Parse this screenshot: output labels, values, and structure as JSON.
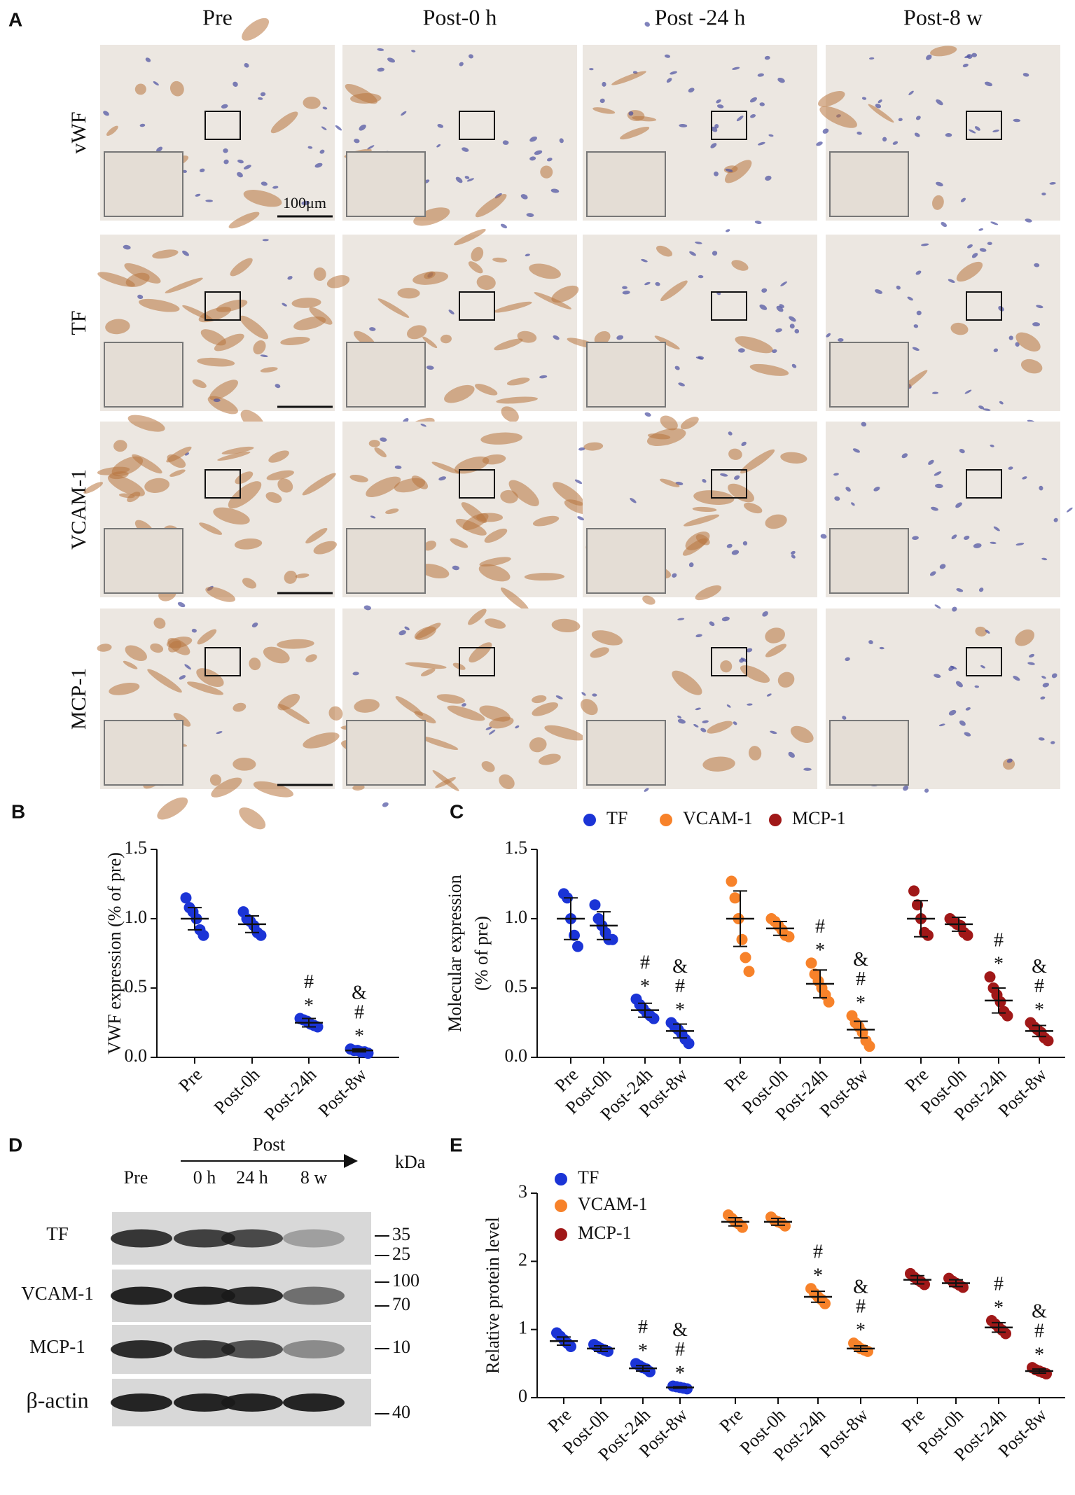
{
  "panel_a": {
    "label": "A",
    "columns": [
      "Pre",
      "Post-0 h",
      "Post -24 h",
      "Post-8 w"
    ],
    "rows": [
      "vWF",
      "TF",
      "VCAM-1",
      "MCP-1"
    ],
    "scale_bar": "100μm"
  },
  "panel_d": {
    "label": "D",
    "header": "Post",
    "unit": "kDa",
    "lanes": [
      "Pre",
      "0 h",
      "24 h",
      "8 w"
    ],
    "rows": [
      {
        "name": "TF",
        "markers": [
          35,
          25
        ]
      },
      {
        "name": "VCAM-1",
        "markers": [
          100,
          70
        ]
      },
      {
        "name": "MCP-1",
        "markers": [
          10
        ]
      },
      {
        "name": "β-actin",
        "markers": [
          40
        ]
      }
    ]
  },
  "chart_data": [
    {
      "type": "dot",
      "label": "B",
      "y_label": [
        "VWF expression (% of pre)"
      ],
      "categories": [
        "Pre",
        "Post-0h",
        "Post-24h",
        "Post-8w"
      ],
      "ylim": [
        0,
        1.5
      ],
      "yticks": [
        {
          "value": 0,
          "label": "0.0"
        },
        0.5,
        {
          "value": 1,
          "label": "1.0"
        },
        1.5
      ],
      "series": [
        {
          "color": "#1b34d6",
          "points": [
            [
              1.15,
              1.08,
              1.05,
              1.0,
              0.92,
              0.88
            ],
            [
              1.05,
              1.0,
              0.98,
              0.95,
              0.9,
              0.88
            ],
            [
              0.28,
              0.27,
              0.26,
              0.24,
              0.23,
              0.22
            ],
            [
              0.06,
              0.05,
              0.05,
              0.04,
              0.04,
              0.03
            ]
          ],
          "mean": [
            1.0,
            0.96,
            0.25,
            0.05
          ],
          "sd": [
            0.08,
            0.06,
            0.03,
            0.01
          ],
          "significance": [
            null,
            null,
            [
              "#",
              "*"
            ],
            [
              "&",
              "#",
              "*"
            ]
          ]
        }
      ]
    },
    {
      "type": "dot",
      "label": "C",
      "y_label": [
        "Molecular expression",
        "(% of pre)"
      ],
      "legend": "top",
      "categories": [
        "Pre",
        "Post-0h",
        "Post-24h",
        "Post-8w"
      ],
      "ylim": [
        0,
        1.5
      ],
      "yticks": [
        {
          "value": 0,
          "label": "0.0"
        },
        0.5,
        {
          "value": 1,
          "label": "1.0"
        },
        1.5
      ],
      "series": [
        {
          "name": "TF",
          "color": "#1b34d6",
          "points": [
            [
              1.18,
              1.15,
              1.0,
              0.88,
              0.8
            ],
            [
              1.1,
              1.0,
              0.95,
              0.9,
              0.85,
              0.85
            ],
            [
              0.42,
              0.38,
              0.35,
              0.32,
              0.3,
              0.28
            ],
            [
              0.25,
              0.22,
              0.2,
              0.17,
              0.13,
              0.1
            ]
          ],
          "mean": [
            1.0,
            0.95,
            0.34,
            0.19
          ],
          "sd": [
            0.15,
            0.1,
            0.05,
            0.05
          ],
          "significance": [
            null,
            null,
            [
              "#",
              "*"
            ],
            [
              "&",
              "#",
              "*"
            ]
          ]
        },
        {
          "name": "VCAM-1",
          "color": "#f7822a",
          "points": [
            [
              1.27,
              1.15,
              1.0,
              0.85,
              0.72,
              0.62
            ],
            [
              1.0,
              0.98,
              0.95,
              0.92,
              0.88,
              0.87
            ],
            [
              0.68,
              0.6,
              0.55,
              0.5,
              0.45,
              0.4
            ],
            [
              0.3,
              0.25,
              0.22,
              0.18,
              0.12,
              0.08
            ]
          ],
          "mean": [
            1.0,
            0.93,
            0.53,
            0.2
          ],
          "sd": [
            0.2,
            0.05,
            0.1,
            0.06
          ],
          "significance": [
            null,
            null,
            [
              "#",
              "*"
            ],
            [
              "&",
              "#",
              "*"
            ]
          ]
        },
        {
          "name": "MCP-1",
          "color": "#a01818",
          "points": [
            [
              1.2,
              1.1,
              1.0,
              0.9,
              0.88
            ],
            [
              1.0,
              0.98,
              0.96,
              0.95,
              0.9,
              0.88
            ],
            [
              0.58,
              0.5,
              0.45,
              0.4,
              0.33,
              0.3
            ],
            [
              0.25,
              0.22,
              0.2,
              0.18,
              0.14,
              0.12
            ]
          ],
          "mean": [
            1.0,
            0.96,
            0.41,
            0.19
          ],
          "sd": [
            0.13,
            0.05,
            0.09,
            0.04
          ],
          "significance": [
            null,
            null,
            [
              "#",
              "*"
            ],
            [
              "&",
              "#",
              "*"
            ]
          ]
        }
      ]
    },
    {
      "type": "dot",
      "label": "E",
      "y_label": [
        "Relative  protein level"
      ],
      "legend": "top-left",
      "categories": [
        "Pre",
        "Post-0h",
        "Post-24h",
        "Post-8w"
      ],
      "ylim": [
        0,
        3
      ],
      "yticks": [
        0,
        1,
        2,
        3
      ],
      "series": [
        {
          "name": "TF",
          "color": "#1b34d6",
          "points": [
            [
              0.95,
              0.9,
              0.85,
              0.8,
              0.75
            ],
            [
              0.78,
              0.75,
              0.72,
              0.7,
              0.68
            ],
            [
              0.5,
              0.47,
              0.44,
              0.42,
              0.38
            ],
            [
              0.17,
              0.16,
              0.15,
              0.14,
              0.13
            ]
          ],
          "mean": [
            0.83,
            0.72,
            0.43,
            0.15
          ],
          "sd": [
            0.06,
            0.04,
            0.04,
            0.01
          ],
          "significance": [
            null,
            null,
            [
              "#",
              "*"
            ],
            [
              "&",
              "#",
              "*"
            ]
          ]
        },
        {
          "name": "VCAM-1",
          "color": "#f7822a",
          "points": [
            [
              2.68,
              2.63,
              2.58,
              2.55,
              2.5
            ],
            [
              2.65,
              2.6,
              2.58,
              2.56,
              2.52
            ],
            [
              1.6,
              1.53,
              1.48,
              1.44,
              1.38
            ],
            [
              0.8,
              0.76,
              0.72,
              0.7,
              0.68
            ]
          ],
          "mean": [
            2.58,
            2.58,
            1.48,
            0.72
          ],
          "sd": [
            0.06,
            0.05,
            0.08,
            0.04
          ],
          "significance": [
            null,
            null,
            [
              "#",
              "*"
            ],
            [
              "&",
              "#",
              "*"
            ]
          ]
        },
        {
          "name": "MCP-1",
          "color": "#a01818",
          "points": [
            [
              1.82,
              1.77,
              1.73,
              1.7,
              1.66
            ],
            [
              1.75,
              1.71,
              1.68,
              1.65,
              1.62
            ],
            [
              1.13,
              1.08,
              1.03,
              0.99,
              0.94
            ],
            [
              0.44,
              0.41,
              0.39,
              0.37,
              0.35
            ]
          ],
          "mean": [
            1.73,
            1.68,
            1.03,
            0.39
          ],
          "sd": [
            0.06,
            0.05,
            0.07,
            0.03
          ],
          "significance": [
            null,
            null,
            [
              "#",
              "*"
            ],
            [
              "&",
              "#",
              "*"
            ]
          ]
        }
      ]
    }
  ]
}
